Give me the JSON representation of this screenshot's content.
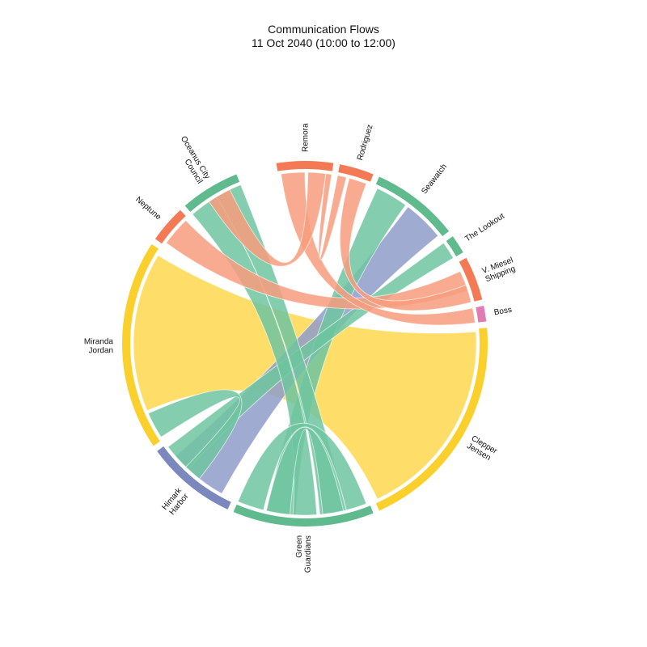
{
  "title": "Communication Flows",
  "subtitle": "11 Oct 2040 (10:00 to 12:00)",
  "chart_data": {
    "type": "chord",
    "title": "Communication Flows",
    "subtitle": "11 Oct 2040 (10:00 to 12:00)",
    "nodes": [
      {
        "id": "remora",
        "label": [
          "Remora"
        ],
        "color": "#f47a55",
        "start": -9,
        "end": 9
      },
      {
        "id": "rodriguez",
        "label": [
          "Rodriguez"
        ],
        "color": "#f47a55",
        "start": 11,
        "end": 22
      },
      {
        "id": "seawatch",
        "label": [
          "Seawatch"
        ],
        "color": "#5fba8e",
        "start": 24,
        "end": 52
      },
      {
        "id": "the-lookout",
        "label": [
          "The Lookout"
        ],
        "color": "#5fba8e",
        "start": 54,
        "end": 60
      },
      {
        "id": "v-miesel-shipping",
        "label": [
          "V. Miesel",
          "Shipping"
        ],
        "color": "#f47a55",
        "start": 62,
        "end": 76
      },
      {
        "id": "boss",
        "label": [
          "Boss"
        ],
        "color": "#e07bb5",
        "start": 78,
        "end": 83
      },
      {
        "id": "clepper-jensen",
        "label": [
          "Clepper",
          "Jensen"
        ],
        "color": "#fcd02c",
        "start": 85,
        "end": 156
      },
      {
        "id": "green-guardians",
        "label": [
          "Green",
          "Guardians"
        ],
        "color": "#5fba8e",
        "start": 158,
        "end": 203
      },
      {
        "id": "himark-harbor",
        "label": [
          "Himark",
          "Harbor"
        ],
        "color": "#7b88bd",
        "start": 205,
        "end": 234
      },
      {
        "id": "miranda-jordan",
        "label": [
          "Miranda",
          "Jordan"
        ],
        "color": "#fcd02c",
        "start": 236,
        "end": 303
      },
      {
        "id": "neptune",
        "label": [
          "Neptune"
        ],
        "color": "#f47a55",
        "start": 305,
        "end": 317
      },
      {
        "id": "oceanus-city-council",
        "label": [
          "Oceanus City",
          "Council"
        ],
        "color": "#5fba8e",
        "start": 319,
        "end": 338
      }
    ],
    "links": [
      {
        "source": "miranda-jordan",
        "target": "clepper-jensen",
        "color": "#fed84e",
        "s": [
          247,
          301
        ],
        "t": [
          86,
          155
        ]
      },
      {
        "source": "himark-harbor",
        "target": "seawatch",
        "color": "#8f9cca",
        "s": [
          209,
          229
        ],
        "t": [
          37,
          51
        ]
      },
      {
        "source": "seawatch",
        "target": "green-guardians",
        "color": "#6fc4a0",
        "s": [
          25,
          36
        ],
        "t": [
          183,
          193
        ]
      },
      {
        "source": "the-lookout",
        "target": "himark-harbor",
        "color": "#6fc4a0",
        "s": [
          54,
          60
        ],
        "t": [
          223,
          233
        ]
      },
      {
        "source": "oceanus-city-council",
        "target": "green-guardians",
        "color": "#6fc4a0",
        "s": [
          319,
          329
        ],
        "t": [
          176,
          184
        ]
      },
      {
        "source": "oceanus-city-council",
        "target": "green-guardians",
        "color": "#6fc4a0",
        "s": [
          329,
          338
        ],
        "t": [
          166,
          175
        ]
      },
      {
        "source": "green-guardians",
        "target": "green-guardians",
        "color": "#6fc4a0",
        "s": [
          159,
          166
        ],
        "t": [
          194,
          203
        ]
      },
      {
        "source": "green-guardians",
        "target": "green-guardians",
        "color": "#6fc4a0",
        "s": [
          167,
          174
        ],
        "t": [
          185,
          193
        ]
      },
      {
        "source": "miranda-jordan",
        "target": "himark-harbor",
        "color": "#6fc4a0",
        "s": [
          237,
          246
        ],
        "t": [
          218,
          224
        ]
      },
      {
        "source": "neptune",
        "target": "v-miesel-shipping",
        "color": "#f79c7c",
        "s": [
          306,
          316
        ],
        "t": [
          65,
          72
        ]
      },
      {
        "source": "remora",
        "target": "boss",
        "color": "#f79c7c",
        "s": [
          -8,
          0
        ],
        "t": [
          78,
          83
        ]
      },
      {
        "source": "remora",
        "target": "oceanus-city-council",
        "color": "#f79c7c",
        "s": [
          1,
          7
        ],
        "t": [
          326,
          334
        ]
      },
      {
        "source": "remora",
        "target": "rodriguez",
        "color": "#f79c7c",
        "s": [
          7,
          9
        ],
        "t": [
          11,
          14
        ]
      },
      {
        "source": "rodriguez",
        "target": "v-miesel-shipping",
        "color": "#f79c7c",
        "s": [
          15,
          21
        ],
        "t": [
          70,
          76
        ]
      }
    ]
  }
}
